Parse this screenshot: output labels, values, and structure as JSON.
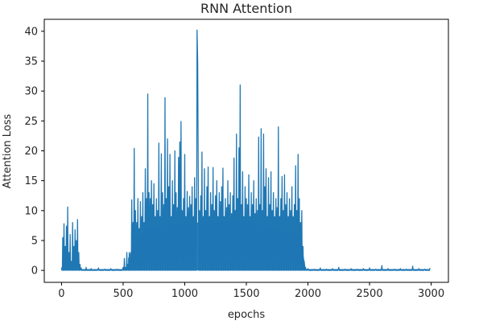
{
  "chart_data": {
    "type": "line",
    "title": "RNN Attention",
    "xlabel": "epochs",
    "ylabel": "Attention Loss",
    "xlim": [
      -140,
      3140
    ],
    "ylim": [
      -2,
      42
    ],
    "xticks": [
      0,
      500,
      1000,
      1500,
      2000,
      2500,
      3000
    ],
    "yticks": [
      0,
      5,
      10,
      15,
      20,
      25,
      30,
      35,
      40
    ],
    "grid": false,
    "legend": "none",
    "color": "#1f77b4",
    "series": [
      {
        "peaks": [
          [
            0,
            0.5
          ],
          [
            10,
            5.5
          ],
          [
            20,
            7.8
          ],
          [
            30,
            4.0
          ],
          [
            40,
            7.4
          ],
          [
            50,
            10.6
          ],
          [
            60,
            3.0
          ],
          [
            70,
            6.0
          ],
          [
            80,
            1.5
          ],
          [
            90,
            8.0
          ],
          [
            100,
            4.0
          ],
          [
            110,
            6.8
          ],
          [
            120,
            5.0
          ],
          [
            130,
            8.5
          ],
          [
            140,
            3.0
          ],
          [
            150,
            1.0
          ],
          [
            160,
            0.4
          ],
          [
            200,
            0.5
          ],
          [
            240,
            0.3
          ],
          [
            300,
            0.4
          ],
          [
            350,
            0.2
          ],
          [
            400,
            0.3
          ],
          [
            450,
            0.2
          ],
          [
            500,
            0.5
          ],
          [
            510,
            2.0
          ],
          [
            520,
            0.5
          ],
          [
            530,
            3.0
          ],
          [
            540,
            1.0
          ],
          [
            550,
            3.0
          ],
          [
            560,
            2.0
          ],
          [
            570,
            11.8
          ],
          [
            580,
            8.0
          ],
          [
            590,
            20.4
          ],
          [
            600,
            10.0
          ],
          [
            610,
            8.0
          ],
          [
            620,
            12.0
          ],
          [
            630,
            7.0
          ],
          [
            640,
            11.5
          ],
          [
            650,
            9.0
          ],
          [
            660,
            13.0
          ],
          [
            670,
            8.0
          ],
          [
            680,
            17.0
          ],
          [
            690,
            12.0
          ],
          [
            700,
            29.5
          ],
          [
            710,
            13.0
          ],
          [
            720,
            12.0
          ],
          [
            730,
            15.0
          ],
          [
            740,
            11.0
          ],
          [
            750,
            14.5
          ],
          [
            760,
            9.0
          ],
          [
            770,
            12.0
          ],
          [
            780,
            10.0
          ],
          [
            790,
            21.3
          ],
          [
            800,
            9.0
          ],
          [
            810,
            19.5
          ],
          [
            820,
            13.0
          ],
          [
            830,
            11.0
          ],
          [
            840,
            28.9
          ],
          [
            850,
            12.0
          ],
          [
            860,
            22.0
          ],
          [
            870,
            14.0
          ],
          [
            880,
            19.4
          ],
          [
            890,
            9.0
          ],
          [
            900,
            15.0
          ],
          [
            910,
            11.0
          ],
          [
            920,
            20.0
          ],
          [
            930,
            13.0
          ],
          [
            940,
            10.5
          ],
          [
            950,
            18.9
          ],
          [
            960,
            21.5
          ],
          [
            970,
            24.9
          ],
          [
            980,
            10.0
          ],
          [
            990,
            12.0
          ],
          [
            1000,
            19.4
          ],
          [
            1010,
            9.0
          ],
          [
            1020,
            13.2
          ],
          [
            1030,
            10.5
          ],
          [
            1040,
            12.4
          ],
          [
            1050,
            11.0
          ],
          [
            1060,
            14.0
          ],
          [
            1070,
            9.0
          ],
          [
            1080,
            15.5
          ],
          [
            1090,
            12.0
          ],
          [
            1100,
            40.2
          ],
          [
            1105,
            34.8
          ],
          [
            1110,
            15.0
          ],
          [
            1120,
            10.0
          ],
          [
            1130,
            12.5
          ],
          [
            1140,
            19.8
          ],
          [
            1150,
            9.0
          ],
          [
            1160,
            17.0
          ],
          [
            1170,
            10.0
          ],
          [
            1180,
            14.0
          ],
          [
            1190,
            17.3
          ],
          [
            1200,
            9.0
          ],
          [
            1210,
            13.0
          ],
          [
            1220,
            11.0
          ],
          [
            1230,
            17.2
          ],
          [
            1240,
            10.0
          ],
          [
            1250,
            12.5
          ],
          [
            1260,
            15.0
          ],
          [
            1270,
            9.0
          ],
          [
            1280,
            13.0
          ],
          [
            1290,
            11.5
          ],
          [
            1300,
            14.0
          ],
          [
            1310,
            17.1
          ],
          [
            1320,
            9.0
          ],
          [
            1330,
            12.0
          ],
          [
            1340,
            10.5
          ],
          [
            1350,
            15.0
          ],
          [
            1360,
            11.0
          ],
          [
            1370,
            13.0
          ],
          [
            1380,
            9.5
          ],
          [
            1390,
            12.5
          ],
          [
            1400,
            18.8
          ],
          [
            1410,
            10.0
          ],
          [
            1420,
            22.8
          ],
          [
            1430,
            12.0
          ],
          [
            1440,
            20.5
          ],
          [
            1450,
            31.0
          ],
          [
            1460,
            11.0
          ],
          [
            1470,
            16.5
          ],
          [
            1480,
            9.0
          ],
          [
            1490,
            14.0
          ],
          [
            1500,
            12.0
          ],
          [
            1510,
            11.0
          ],
          [
            1520,
            16.0
          ],
          [
            1530,
            9.0
          ],
          [
            1540,
            13.0
          ],
          [
            1550,
            11.0
          ],
          [
            1560,
            15.0
          ],
          [
            1570,
            9.5
          ],
          [
            1580,
            12.0
          ],
          [
            1590,
            10.0
          ],
          [
            1600,
            22.3
          ],
          [
            1610,
            11.0
          ],
          [
            1620,
            23.7
          ],
          [
            1630,
            10.0
          ],
          [
            1640,
            22.8
          ],
          [
            1650,
            14.0
          ],
          [
            1660,
            17.0
          ],
          [
            1670,
            9.0
          ],
          [
            1680,
            15.5
          ],
          [
            1690,
            11.0
          ],
          [
            1700,
            16.5
          ],
          [
            1710,
            10.0
          ],
          [
            1720,
            13.0
          ],
          [
            1730,
            9.0
          ],
          [
            1740,
            12.0
          ],
          [
            1750,
            10.5
          ],
          [
            1760,
            24.0
          ],
          [
            1770,
            9.0
          ],
          [
            1780,
            12.0
          ],
          [
            1790,
            15.7
          ],
          [
            1800,
            10.0
          ],
          [
            1810,
            16.0
          ],
          [
            1820,
            11.0
          ],
          [
            1830,
            13.0
          ],
          [
            1840,
            9.0
          ],
          [
            1850,
            12.0
          ],
          [
            1860,
            10.0
          ],
          [
            1870,
            14.0
          ],
          [
            1880,
            9.0
          ],
          [
            1890,
            11.0
          ],
          [
            1900,
            17.5
          ],
          [
            1910,
            10.0
          ],
          [
            1920,
            19.4
          ],
          [
            1930,
            12.0
          ],
          [
            1940,
            8.0
          ],
          [
            1950,
            10.0
          ],
          [
            1960,
            4.0
          ],
          [
            1970,
            1.5
          ],
          [
            1980,
            0.5
          ],
          [
            2000,
            0.3
          ],
          [
            2050,
            0.2
          ],
          [
            2100,
            0.4
          ],
          [
            2150,
            0.2
          ],
          [
            2200,
            0.3
          ],
          [
            2250,
            0.5
          ],
          [
            2300,
            0.2
          ],
          [
            2350,
            0.3
          ],
          [
            2400,
            0.2
          ],
          [
            2450,
            0.3
          ],
          [
            2500,
            0.4
          ],
          [
            2550,
            0.2
          ],
          [
            2600,
            0.8
          ],
          [
            2650,
            0.3
          ],
          [
            2700,
            0.2
          ],
          [
            2750,
            0.3
          ],
          [
            2800,
            0.2
          ],
          [
            2850,
            0.7
          ],
          [
            2900,
            0.3
          ],
          [
            2950,
            0.2
          ],
          [
            2990,
            0.4
          ]
        ]
      }
    ]
  }
}
